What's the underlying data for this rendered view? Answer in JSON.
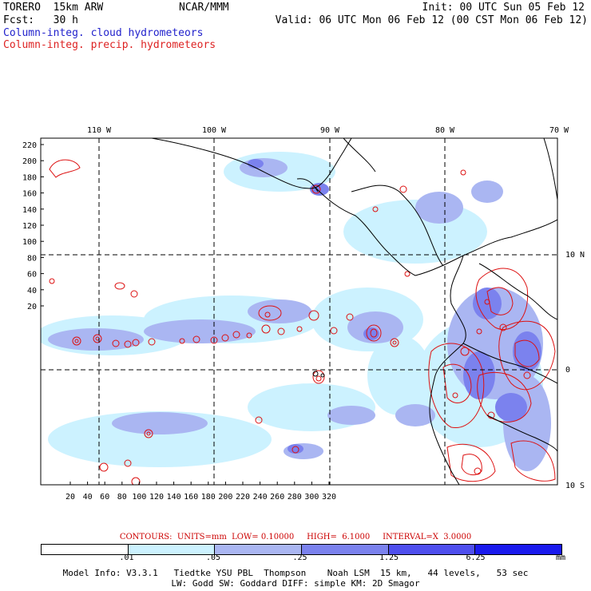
{
  "header": {
    "model": "TORERO  15km ARW",
    "org": "NCAR/MMM",
    "init": "Init: 00 UTC Sun 05 Feb 12",
    "fcst": "Fcst:   30 h",
    "valid": "Valid: 06 UTC Mon 06 Feb 12 (00 CST Mon 06 Feb 12)",
    "field1": "Column-integ. cloud hydrometeors",
    "field2": "Column-integ. precip. hydrometeors"
  },
  "map": {
    "top_labels": [
      "110 W",
      "100 W",
      "90 W",
      "80 W",
      "70 W"
    ],
    "right_labels": [
      "10 N",
      "0",
      "10 S"
    ],
    "y_ticks": [
      "220",
      "200",
      "180",
      "160",
      "140",
      "120",
      "100",
      "80",
      "60",
      "40",
      "20"
    ],
    "x_ticks": [
      "20",
      "40",
      "60",
      "80",
      "100",
      "120",
      "140",
      "160",
      "180",
      "200",
      "220",
      "240",
      "260",
      "280",
      "300",
      "320"
    ]
  },
  "contour_info": "CONTOURS:  UNITS=mm  LOW= 0.10000     HIGH=  6.1000     INTERVAL=X  3.0000",
  "color_scale": {
    "labels": [
      ".01",
      ".05",
      ".25",
      "1.25",
      "6.25"
    ],
    "unit": "mm",
    "colors": [
      "#ffffff",
      "#ccf2ff",
      "#aab6f2",
      "#7b82ee",
      "#4f4fee",
      "#1a1aee"
    ]
  },
  "model_info": {
    "line1": "Model Info: V3.3.1   Tiedtke YSU PBL  Thompson    Noah LSM  15 km,   44 levels,   53 sec",
    "line2": "LW: Godd SW: Goddard DIFF: simple KM: 2D Smagor"
  }
}
